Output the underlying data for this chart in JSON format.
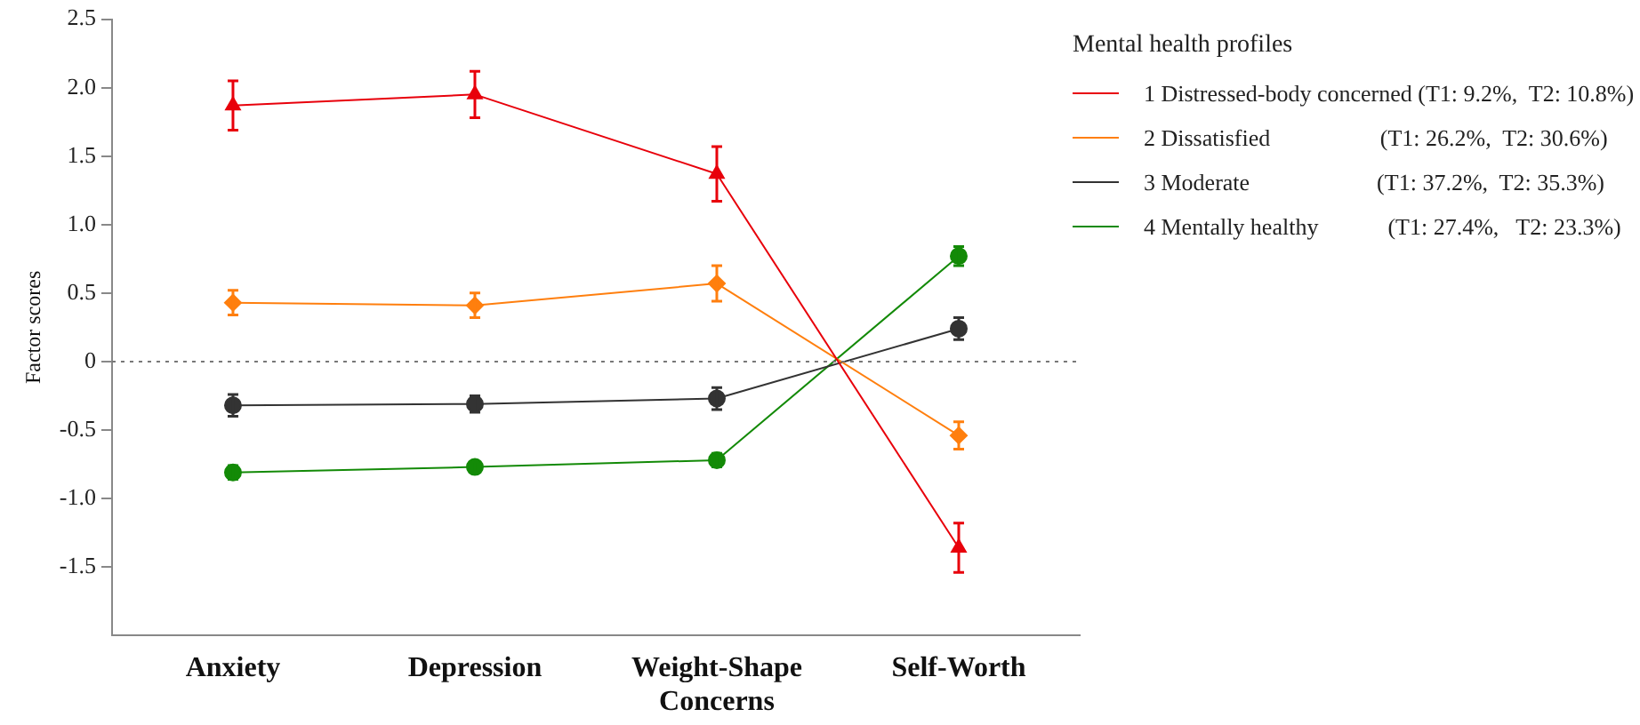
{
  "chart_data": {
    "type": "line",
    "ylabel": "Factor scores",
    "legend_title": "Mental health profiles",
    "legend": "top right",
    "grid": false,
    "categories": [
      "Anxiety",
      "Depression",
      "Weight-Shape Concerns",
      "Self-Worth"
    ],
    "ylim": [
      -2,
      2.5
    ],
    "yticks": [
      {
        "value": 2.5,
        "label": "2.5"
      },
      {
        "value": 2,
        "label": "2.0"
      },
      {
        "value": 1.5,
        "label": "1.5"
      },
      {
        "value": 1,
        "label": "1.0"
      },
      {
        "value": 0.5,
        "label": "0.5"
      },
      0,
      {
        "value": -0.5,
        "label": "-0.5"
      },
      {
        "value": -1,
        "label": "-1.0"
      },
      {
        "value": -1.5,
        "label": "-1.5"
      }
    ],
    "ref_lines": [
      {
        "axis": "y",
        "value": 0,
        "color": "#777777",
        "line_style": "dotted"
      }
    ],
    "series": [
      {
        "name": "1 Distressed-body concerned (T1: 9.2%,  T2: 10.8%)",
        "color": "#e8000b",
        "marker": "triangle",
        "values": [
          1.87,
          1.95,
          1.37,
          -1.36
        ],
        "errors": [
          0.18,
          0.17,
          0.2,
          0.18
        ]
      },
      {
        "name": "2 Dissatisfied                   (T1: 26.2%,  T2: 30.6%)",
        "color": "#ff7f0e",
        "marker": "diamond",
        "values": [
          0.43,
          0.41,
          0.57,
          -0.54
        ],
        "errors": [
          0.09,
          0.09,
          0.13,
          0.1
        ]
      },
      {
        "name": "3 Moderate                      (T1: 37.2%,  T2: 35.3%)",
        "color": "#333333",
        "marker": "circle",
        "values": [
          -0.32,
          -0.31,
          -0.27,
          0.24
        ],
        "errors": [
          0.08,
          0.06,
          0.08,
          0.08
        ]
      },
      {
        "name": "4 Mentally healthy            (T1: 27.4%,   T2: 23.3%)",
        "color": "#138a07",
        "marker": "circle",
        "values": [
          -0.81,
          -0.77,
          -0.72,
          0.77
        ],
        "errors": [
          0.05,
          0.04,
          0.05,
          0.07
        ]
      }
    ]
  }
}
